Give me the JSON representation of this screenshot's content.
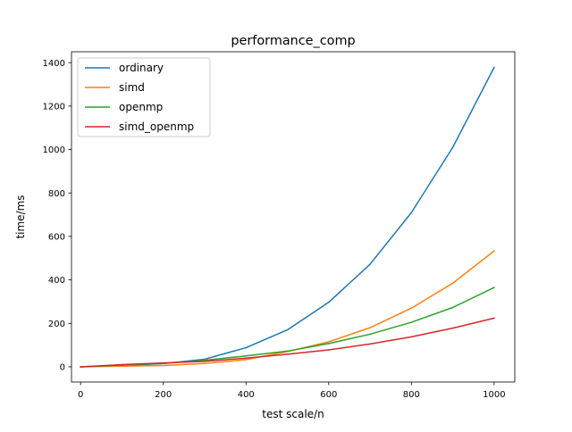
{
  "chart_data": {
    "type": "line",
    "title": "performance_comp",
    "xlabel": "test scale/n",
    "ylabel": "time/ms",
    "xlim": [
      -22,
      1050
    ],
    "ylim": [
      -70,
      1450
    ],
    "xticks": [
      0,
      200,
      400,
      600,
      800,
      1000
    ],
    "yticks": [
      0,
      200,
      400,
      600,
      800,
      1000,
      1200,
      1400
    ],
    "grid": false,
    "legend_position": "upper-left",
    "x": [
      0,
      100,
      200,
      300,
      400,
      500,
      600,
      700,
      800,
      900,
      1000
    ],
    "series": [
      {
        "name": "ordinary",
        "color": "#1f77b4",
        "values": [
          0,
          5,
          15,
          35,
          88,
          170,
          297,
          472,
          710,
          1010,
          1378
        ]
      },
      {
        "name": "simd",
        "color": "#ff7f0e",
        "values": [
          0,
          3,
          6,
          15,
          33,
          70,
          115,
          180,
          270,
          385,
          533
        ]
      },
      {
        "name": "openmp",
        "color": "#2ca02c",
        "values": [
          0,
          8,
          15,
          30,
          50,
          72,
          107,
          150,
          205,
          273,
          365
        ]
      },
      {
        "name": "simd_openmp",
        "color": "#d62728",
        "values": [
          0,
          10,
          18,
          25,
          40,
          58,
          78,
          105,
          138,
          178,
          224
        ]
      }
    ]
  }
}
